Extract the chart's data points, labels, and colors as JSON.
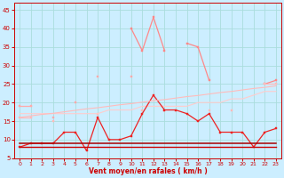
{
  "x": [
    0,
    1,
    2,
    3,
    4,
    5,
    6,
    7,
    8,
    9,
    10,
    11,
    12,
    13,
    14,
    15,
    16,
    17,
    18,
    19,
    20,
    21,
    22,
    23
  ],
  "series": [
    {
      "name": "rafales_max_peak",
      "color": "#ff8888",
      "linewidth": 0.9,
      "marker": "s",
      "markersize": 2.0,
      "values": [
        null,
        null,
        null,
        null,
        null,
        null,
        null,
        null,
        null,
        null,
        40,
        34,
        43,
        34,
        null,
        36,
        35,
        26,
        null,
        null,
        null,
        null,
        25,
        26
      ]
    },
    {
      "name": "rafales_upper",
      "color": "#ffaaaa",
      "linewidth": 0.9,
      "marker": "s",
      "markersize": 2.0,
      "values": [
        19,
        19,
        null,
        16,
        null,
        20,
        null,
        27,
        null,
        null,
        27,
        null,
        null,
        null,
        null,
        null,
        null,
        null,
        null,
        null,
        null,
        null,
        null,
        null
      ]
    },
    {
      "name": "line_pink_rising",
      "color": "#ffbbbb",
      "linewidth": 0.9,
      "marker": "s",
      "markersize": 2.0,
      "values": [
        16,
        16,
        null,
        15,
        null,
        null,
        null,
        17,
        null,
        null,
        null,
        18,
        null,
        18,
        null,
        null,
        null,
        18,
        null,
        18,
        null,
        null,
        25,
        25
      ]
    },
    {
      "name": "line_pink_flat_upper",
      "color": "#ffcccc",
      "linewidth": 0.8,
      "marker": null,
      "markersize": 0,
      "values": [
        17,
        17,
        17,
        17,
        17,
        17,
        17,
        17,
        18,
        18,
        18,
        19,
        19,
        19,
        19,
        19,
        20,
        20,
        20,
        21,
        21,
        22,
        23,
        23
      ]
    },
    {
      "name": "line_red_jagged",
      "color": "#ee2222",
      "linewidth": 0.9,
      "marker": "s",
      "markersize": 2.0,
      "values": [
        8,
        9,
        9,
        9,
        12,
        12,
        7,
        16,
        10,
        10,
        11,
        17,
        22,
        18,
        18,
        17,
        15,
        17,
        12,
        12,
        12,
        8,
        12,
        13
      ]
    },
    {
      "name": "line_darkred_flat1",
      "color": "#cc0000",
      "linewidth": 1.0,
      "marker": null,
      "markersize": 0,
      "values": [
        8,
        8,
        8,
        8,
        8,
        8,
        8,
        8,
        8,
        8,
        8,
        8,
        8,
        8,
        8,
        8,
        8,
        8,
        8,
        8,
        8,
        8,
        8,
        8
      ]
    },
    {
      "name": "line_darkred_flat2",
      "color": "#aa0000",
      "linewidth": 1.1,
      "marker": null,
      "markersize": 0,
      "values": [
        9,
        9,
        9,
        9,
        9,
        9,
        9,
        9,
        9,
        9,
        9,
        9,
        9,
        9,
        9,
        9,
        9,
        9,
        9,
        9,
        9,
        9,
        9,
        9
      ]
    },
    {
      "name": "line_red_diagonal",
      "color": "#ffbbbb",
      "linewidth": 0.8,
      "marker": null,
      "markersize": 0,
      "values": [
        16,
        16.4,
        16.8,
        17.1,
        17.5,
        17.9,
        18.3,
        18.6,
        19.0,
        19.4,
        19.7,
        20.1,
        20.5,
        20.8,
        21.2,
        21.6,
        21.9,
        22.3,
        22.7,
        23.0,
        23.4,
        23.8,
        24.1,
        24.5
      ]
    }
  ],
  "arrows": {
    "x": [
      0,
      1,
      2,
      3,
      4,
      5,
      6,
      7,
      8,
      9,
      10,
      11,
      12,
      13,
      14,
      15,
      16,
      17,
      18,
      19,
      20,
      21,
      22,
      23
    ],
    "angles_deg": [
      45,
      45,
      45,
      45,
      90,
      90,
      90,
      90,
      45,
      45,
      45,
      45,
      45,
      45,
      45,
      45,
      45,
      0,
      0,
      45,
      45,
      315,
      315,
      315
    ]
  },
  "xlabel": "Vent moyen/en rafales ( km/h )",
  "ylabel": "",
  "xlim": [
    -0.5,
    23.5
  ],
  "ylim": [
    5,
    47
  ],
  "yticks": [
    5,
    10,
    15,
    20,
    25,
    30,
    35,
    40,
    45
  ],
  "xticks": [
    0,
    1,
    2,
    3,
    4,
    5,
    6,
    7,
    8,
    9,
    10,
    11,
    12,
    13,
    14,
    15,
    16,
    17,
    18,
    19,
    20,
    21,
    22,
    23
  ],
  "bg_color": "#cceeff",
  "grid_color": "#aadddd",
  "tick_color": "#cc0000",
  "label_color": "#cc0000"
}
